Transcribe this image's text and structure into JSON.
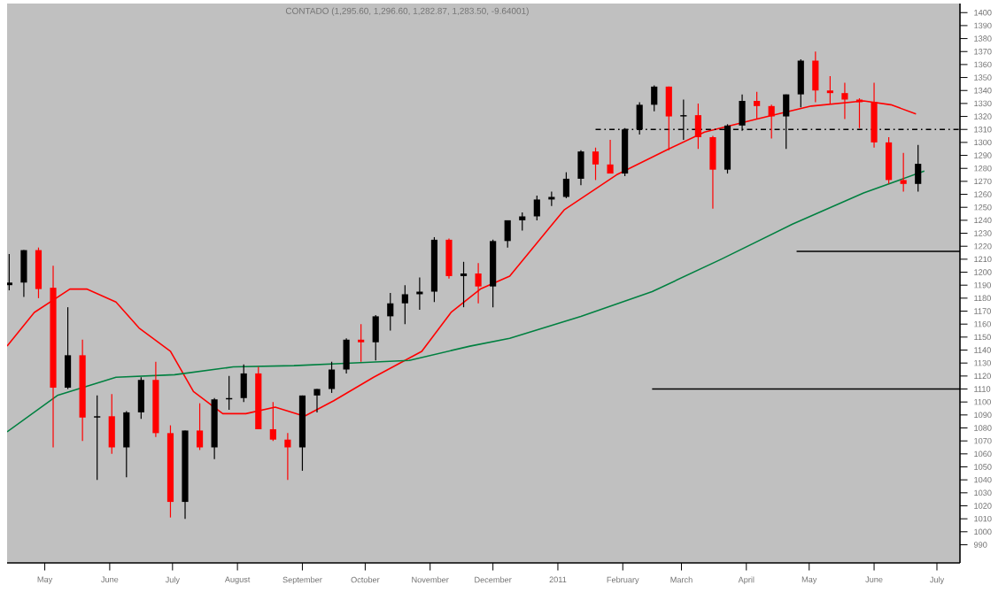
{
  "chart_data": {
    "type": "candlestick",
    "title": "CONTADO (1,295.60, 1,296.60, 1,282.87, 1,283.50, -9.64001)",
    "x": [
      "2010-04-14",
      "2010-04-21",
      "2010-04-28",
      "2010-05-05",
      "2010-05-12",
      "2010-05-19",
      "2010-05-26",
      "2010-06-02",
      "2010-06-09",
      "2010-06-16",
      "2010-06-23",
      "2010-06-30",
      "2010-07-07",
      "2010-07-14",
      "2010-07-21",
      "2010-07-28",
      "2010-08-04",
      "2010-08-11",
      "2010-08-18",
      "2010-08-25",
      "2010-09-01",
      "2010-09-08",
      "2010-09-15",
      "2010-09-22",
      "2010-09-29",
      "2010-10-06",
      "2010-10-13",
      "2010-10-20",
      "2010-10-27",
      "2010-11-03",
      "2010-11-10",
      "2010-11-17",
      "2010-11-24",
      "2010-12-01",
      "2010-12-08",
      "2010-12-15",
      "2010-12-22",
      "2010-12-29",
      "2011-01-05",
      "2011-01-12",
      "2011-01-19",
      "2011-01-26",
      "2011-02-02",
      "2011-02-09",
      "2011-02-16",
      "2011-02-23",
      "2011-03-02",
      "2011-03-09",
      "2011-03-16",
      "2011-03-23",
      "2011-03-30",
      "2011-04-06",
      "2011-04-13",
      "2011-04-20",
      "2011-04-27",
      "2011-05-04",
      "2011-05-11",
      "2011-05-18",
      "2011-05-25",
      "2011-06-01",
      "2011-06-08",
      "2011-06-15",
      "2011-06-22"
    ],
    "ohlc": [
      [
        1190,
        1214,
        1186,
        1192
      ],
      [
        1192,
        1217,
        1181,
        1217
      ],
      [
        1217,
        1219,
        1180,
        1187
      ],
      [
        1188,
        1205,
        1065,
        1111
      ],
      [
        1111,
        1173,
        1110,
        1136
      ],
      [
        1136,
        1148,
        1070,
        1088
      ],
      [
        1088,
        1105,
        1040,
        1089
      ],
      [
        1089,
        1106,
        1060,
        1065
      ],
      [
        1065,
        1093,
        1042,
        1092
      ],
      [
        1092,
        1119,
        1087,
        1117
      ],
      [
        1117,
        1131,
        1073,
        1076
      ],
      [
        1076,
        1082,
        1011,
        1023
      ],
      [
        1023,
        1078,
        1010,
        1078
      ],
      [
        1078,
        1099,
        1063,
        1065
      ],
      [
        1065,
        1103,
        1056,
        1102
      ],
      [
        1102,
        1120,
        1094,
        1103
      ],
      [
        1103,
        1129,
        1100,
        1122
      ],
      [
        1122,
        1127,
        1079,
        1079
      ],
      [
        1079,
        1100,
        1070,
        1071
      ],
      [
        1071,
        1076,
        1040,
        1065
      ],
      [
        1065,
        1105,
        1047,
        1105
      ],
      [
        1105,
        1110,
        1092,
        1110
      ],
      [
        1110,
        1131,
        1107,
        1125
      ],
      [
        1125,
        1149,
        1122,
        1148
      ],
      [
        1148,
        1160,
        1131,
        1146
      ],
      [
        1146,
        1167,
        1132,
        1166
      ],
      [
        1166,
        1184,
        1155,
        1176
      ],
      [
        1176,
        1190,
        1160,
        1183
      ],
      [
        1183,
        1196,
        1171,
        1185
      ],
      [
        1185,
        1227,
        1177,
        1225
      ],
      [
        1225,
        1226,
        1195,
        1197
      ],
      [
        1197,
        1208,
        1173,
        1199
      ],
      [
        1199,
        1207,
        1176,
        1189
      ],
      [
        1189,
        1225,
        1173,
        1224
      ],
      [
        1224,
        1240,
        1219,
        1240
      ],
      [
        1240,
        1246,
        1232,
        1243
      ],
      [
        1243,
        1259,
        1240,
        1256
      ],
      [
        1256,
        1262,
        1251,
        1258
      ],
      [
        1258,
        1277,
        1257,
        1272
      ],
      [
        1272,
        1294,
        1267,
        1293
      ],
      [
        1293,
        1296,
        1271,
        1283
      ],
      [
        1283,
        1302,
        1276,
        1276
      ],
      [
        1276,
        1311,
        1274,
        1310
      ],
      [
        1310,
        1331,
        1306,
        1329
      ],
      [
        1329,
        1344,
        1324,
        1343
      ],
      [
        1343,
        1343,
        1294,
        1320
      ],
      [
        1320,
        1333,
        1302,
        1321
      ],
      [
        1321,
        1330,
        1295,
        1304
      ],
      [
        1304,
        1305,
        1249,
        1279
      ],
      [
        1279,
        1314,
        1276,
        1313
      ],
      [
        1313,
        1337,
        1309,
        1332
      ],
      [
        1332,
        1339,
        1318,
        1328
      ],
      [
        1328,
        1329,
        1303,
        1320
      ],
      [
        1320,
        1337,
        1295,
        1337
      ],
      [
        1337,
        1364,
        1327,
        1363
      ],
      [
        1363,
        1370,
        1331,
        1340
      ],
      [
        1340,
        1351,
        1330,
        1338
      ],
      [
        1338,
        1346,
        1318,
        1333
      ],
      [
        1333,
        1334,
        1311,
        1331
      ],
      [
        1331,
        1346,
        1296,
        1300
      ],
      [
        1300,
        1304,
        1268,
        1271
      ],
      [
        1271,
        1292,
        1262,
        1268
      ],
      [
        1268,
        1298,
        1262,
        1283.5
      ]
    ],
    "colors": [
      "#000000",
      "#000000",
      "#ff0000",
      "#ff0000",
      "#000000",
      "#ff0000",
      "#000000",
      "#ff0000",
      "#000000",
      "#000000",
      "#ff0000",
      "#ff0000",
      "#000000",
      "#ff0000",
      "#000000",
      "#000000",
      "#000000",
      "#ff0000",
      "#ff0000",
      "#ff0000",
      "#000000",
      "#000000",
      "#000000",
      "#000000",
      "#ff0000",
      "#000000",
      "#000000",
      "#000000",
      "#000000",
      "#000000",
      "#ff0000",
      "#000000",
      "#ff0000",
      "#000000",
      "#000000",
      "#000000",
      "#000000",
      "#000000",
      "#000000",
      "#000000",
      "#ff0000",
      "#ff0000",
      "#000000",
      "#000000",
      "#000000",
      "#ff0000",
      "#000000",
      "#ff0000",
      "#ff0000",
      "#000000",
      "#000000",
      "#ff0000",
      "#ff0000",
      "#000000",
      "#000000",
      "#ff0000",
      "#ff0000",
      "#ff0000",
      "#ff0000",
      "#ff0000",
      "#ff0000",
      "#ff0000",
      "#000000"
    ],
    "series": [
      {
        "type": "line",
        "color": "#ff0000",
        "x": [
          "2010-04-13",
          "2010-04-26",
          "2010-05-13",
          "2010-05-21",
          "2010-06-04",
          "2010-06-15",
          "2010-06-30",
          "2010-07-11",
          "2010-07-25",
          "2010-08-05",
          "2010-08-19",
          "2010-09-02",
          "2010-09-16",
          "2010-10-05",
          "2010-10-28",
          "2010-11-11",
          "2010-11-25",
          "2010-12-09",
          "2011-01-04",
          "2011-01-29",
          "2011-02-23",
          "2011-03-12",
          "2011-04-06",
          "2011-05-02",
          "2011-05-27",
          "2011-06-09",
          "2011-06-21"
        ],
        "values": [
          1143,
          1169,
          1187,
          1187,
          1177,
          1157,
          1139,
          1108,
          1091,
          1091,
          1096,
          1089,
          1101,
          1119,
          1139,
          1169,
          1187,
          1197,
          1248,
          1275,
          1295,
          1308,
          1318,
          1328,
          1332,
          1329,
          1322
        ]
      },
      {
        "type": "line",
        "color": "#008040",
        "x": [
          "2010-04-13",
          "2010-05-07",
          "2010-06-04",
          "2010-07-02",
          "2010-07-30",
          "2010-08-28",
          "2010-09-24",
          "2010-10-22",
          "2010-11-20",
          "2010-12-09",
          "2011-01-12",
          "2011-02-15",
          "2011-03-20",
          "2011-04-23",
          "2011-05-27",
          "2011-06-25"
        ],
        "values": [
          1077,
          1105,
          1119,
          1121,
          1127,
          1128,
          1130,
          1132,
          1143,
          1149,
          1166,
          1185,
          1210,
          1237,
          1261,
          1278
        ]
      },
      {
        "type": "line",
        "color": "#000000",
        "line_style": "dashed",
        "x": [
          "2011-01-19",
          "2011-07-12"
        ],
        "values": [
          1310,
          1310
        ]
      },
      {
        "type": "line",
        "color": "#000000",
        "x": [
          "2011-04-25",
          "2011-07-12"
        ],
        "values": [
          1216,
          1216
        ]
      },
      {
        "type": "line",
        "color": "#000000",
        "x": [
          "2011-02-15",
          "2011-07-12"
        ],
        "values": [
          1110,
          1110
        ]
      }
    ],
    "xlim": [
      "2010-04-13",
      "2011-07-12"
    ],
    "xticks": [
      {
        "value": "2010-05-01",
        "label": "May"
      },
      {
        "value": "2010-06-01",
        "label": "June"
      },
      {
        "value": "2010-07-01",
        "label": "July"
      },
      {
        "value": "2010-08-01",
        "label": "August"
      },
      {
        "value": "2010-09-01",
        "label": "September"
      },
      {
        "value": "2010-10-01",
        "label": "October"
      },
      {
        "value": "2010-11-01",
        "label": "November"
      },
      {
        "value": "2010-12-01",
        "label": "December"
      },
      {
        "value": "2011-01-01",
        "label": "2011"
      },
      {
        "value": "2011-02-01",
        "label": "February"
      },
      {
        "value": "2011-03-01",
        "label": "March"
      },
      {
        "value": "2011-04-01",
        "label": "April"
      },
      {
        "value": "2011-05-01",
        "label": "May"
      },
      {
        "value": "2011-06-01",
        "label": "June"
      },
      {
        "value": "2011-07-01",
        "label": "July"
      }
    ],
    "ylim": [
      976,
      1407
    ],
    "yticks": [
      990,
      1000,
      1010,
      1020,
      1030,
      1040,
      1050,
      1060,
      1070,
      1080,
      1090,
      1100,
      1110,
      1120,
      1130,
      1140,
      1150,
      1160,
      1170,
      1180,
      1190,
      1200,
      1210,
      1220,
      1230,
      1240,
      1250,
      1260,
      1270,
      1280,
      1290,
      1300,
      1310,
      1320,
      1330,
      1340,
      1350,
      1360,
      1370,
      1380,
      1390,
      1400
    ]
  }
}
